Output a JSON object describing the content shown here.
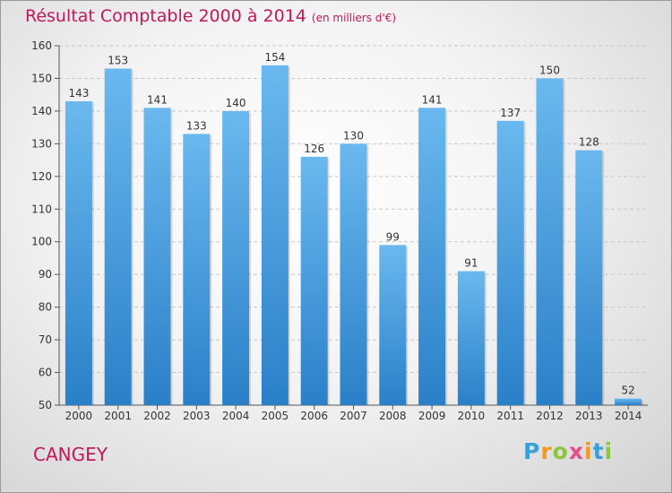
{
  "chart_data": {
    "type": "bar",
    "title": "Résultat Comptable 2000 à 2014",
    "subtitle": "(en milliers d'€)",
    "categories": [
      "2000",
      "2001",
      "2002",
      "2003",
      "2004",
      "2005",
      "2006",
      "2007",
      "2008",
      "2009",
      "2010",
      "2011",
      "2012",
      "2013",
      "2014"
    ],
    "values": [
      143,
      153,
      141,
      133,
      140,
      154,
      126,
      130,
      99,
      141,
      91,
      137,
      150,
      128,
      52
    ],
    "data_labels": [
      "143",
      "153",
      "141",
      "133",
      "140",
      "154",
      "126",
      "130",
      "99",
      "141",
      "91",
      "137",
      "150",
      "128",
      "52"
    ],
    "ylim": [
      50,
      160
    ],
    "yticks": [
      "50",
      "60",
      "70",
      "80",
      "90",
      "100",
      "110",
      "120",
      "130",
      "140",
      "150",
      "160"
    ],
    "grid": true,
    "colors": {
      "bar_top": "#6ab8ef",
      "bar_bottom": "#2a80c8",
      "title": "#c2185b"
    }
  },
  "location": "CANGEY",
  "brand": {
    "name": "Proxiti",
    "letters": [
      "P",
      "r",
      "o",
      "x",
      "i",
      "t",
      "i"
    ],
    "letter_colors": [
      "#3aa0d8",
      "#f29a1f",
      "#8cc63f",
      "#e84c8b",
      "#f29a1f",
      "#3aa0d8",
      "#8cc63f"
    ]
  }
}
